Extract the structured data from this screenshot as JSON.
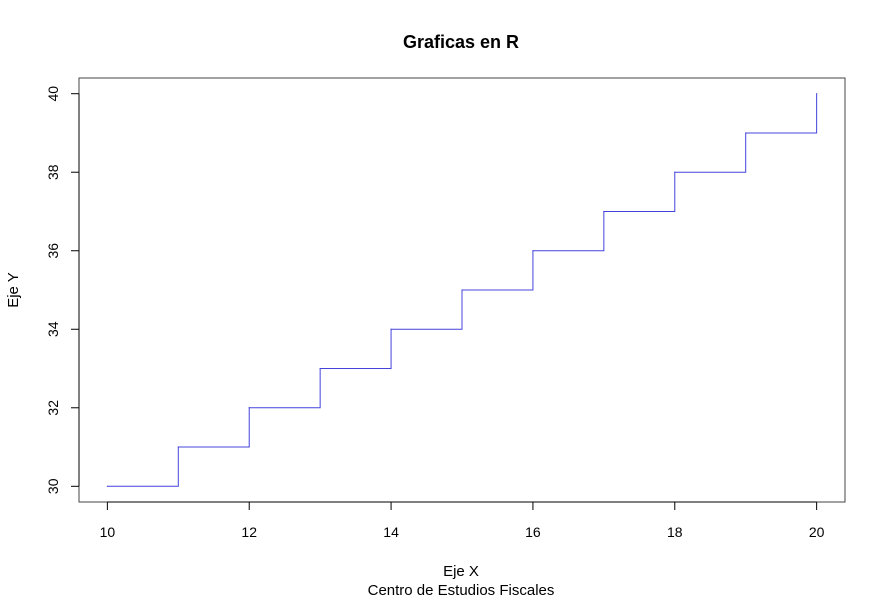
{
  "chart_data": {
    "type": "line",
    "step": true,
    "title": "Graficas en R",
    "xlabel": "Eje X",
    "ylabel": "Eje Y",
    "subtitle": "Centro de Estudios Fiscales",
    "xlim": [
      9.6,
      20.4
    ],
    "ylim": [
      29.6,
      40.4
    ],
    "xticks": [
      "10",
      "12",
      "14",
      "16",
      "18",
      "20"
    ],
    "yticks": [
      "30",
      "32",
      "34",
      "36",
      "38",
      "40"
    ],
    "grid": false,
    "series": [
      {
        "color": "#4444dd",
        "x": [
          10,
          11,
          12,
          13,
          14,
          15,
          16,
          17,
          18,
          19,
          20
        ],
        "y": [
          30,
          31,
          32,
          33,
          34,
          35,
          36,
          37,
          38,
          39,
          40
        ]
      }
    ]
  }
}
